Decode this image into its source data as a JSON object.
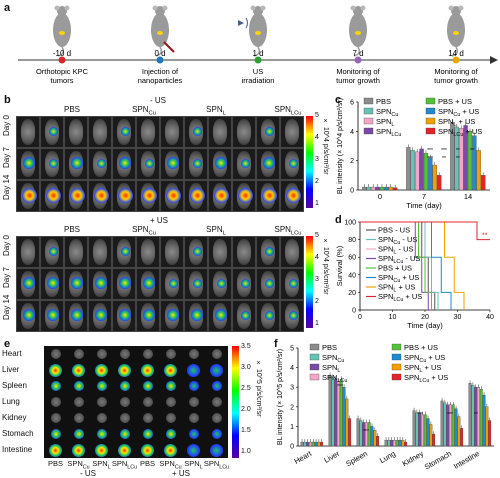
{
  "panels": {
    "a": "a",
    "b": "b",
    "c": "c",
    "d": "d",
    "e": "e",
    "f": "f"
  },
  "timeline": {
    "events": [
      {
        "day": "-10 d",
        "label": "Orthotopic KPC\ntumors"
      },
      {
        "day": "0 d",
        "label": "Injection of\nnanoparticles"
      },
      {
        "day": "1 d",
        "label": "US\nirradiation"
      },
      {
        "day": "7 d",
        "label": "Monitoring of\ntumor growth"
      },
      {
        "day": "14 d",
        "label": "Monitoring of\ntumor growth"
      }
    ],
    "dot_colors": [
      "#d62728",
      "#1f77b4",
      "#2ca02c",
      "#9467bd",
      "#e6a700"
    ]
  },
  "panel_b": {
    "minus_title": "- US",
    "plus_title": "+ US",
    "groups": [
      "PBS",
      "SPN_Cu",
      "SPN_L",
      "SPN_LCu"
    ],
    "rows": [
      "Day 0",
      "Day 7",
      "Day 14"
    ],
    "colorbar_label": "× 10^4 p/s/cm²/sr",
    "colorbar_ticks": [
      "5",
      "4",
      "3",
      "2",
      "1"
    ]
  },
  "panel_e": {
    "organs": [
      "Heart",
      "Liver",
      "Spleen",
      "Lung",
      "Kidney",
      "Stomach",
      "Intestine"
    ],
    "groups": [
      "PBS",
      "SPN_Cu",
      "SPN_L",
      "SPN_LCu",
      "PBS",
      "SPN_Cu",
      "SPN_L",
      "SPN_LCu"
    ],
    "minus_label": "- US",
    "plus_label": "+ US",
    "colorbar_label": "× 10^5 p/s/cm²/sr",
    "colorbar_ticks": [
      "3.5",
      "3.0",
      "2.5",
      "2.0",
      "1.5",
      "1.0"
    ]
  },
  "chart_data": [
    {
      "id": "c",
      "type": "bar",
      "categories": [
        "0",
        "7",
        "14"
      ],
      "xlabel": "Time (day)",
      "ylabel": "BL intensity (× 10^4 p/s/cm²/sr)",
      "ylim": [
        0,
        6
      ],
      "yticks": [
        0,
        2,
        4,
        6
      ],
      "series": [
        {
          "name": "PBS",
          "color": "#8c8c8c",
          "values": [
            0.2,
            2.9,
            4.6
          ]
        },
        {
          "name": "SPN_Cu",
          "color": "#66c2b5",
          "values": [
            0.2,
            2.7,
            4.3
          ]
        },
        {
          "name": "SPN_L",
          "color": "#f4a6c6",
          "values": [
            0.2,
            2.6,
            4.2
          ]
        },
        {
          "name": "SPN_LCu",
          "color": "#7b4aa8",
          "values": [
            0.2,
            2.8,
            4.4
          ]
        },
        {
          "name": "PBS + US",
          "color": "#55c23a",
          "values": [
            0.2,
            2.5,
            4.0
          ]
        },
        {
          "name": "SPN_Cu + US",
          "color": "#1f8ad0",
          "values": [
            0.2,
            2.2,
            3.7
          ]
        },
        {
          "name": "SPN_L + US",
          "color": "#f2a000",
          "values": [
            0.2,
            1.7,
            2.7
          ]
        },
        {
          "name": "SPN_LCu + US",
          "color": "#e0262b",
          "values": [
            0.15,
            1.0,
            1.0
          ]
        }
      ],
      "annotations": [
        "***",
        "***",
        "**",
        "**",
        "***",
        "**",
        "**"
      ]
    },
    {
      "id": "d",
      "type": "line",
      "xlabel": "Time (day)",
      "ylabel": "Survival (%)",
      "xlim": [
        0,
        40
      ],
      "ylim": [
        0,
        100
      ],
      "xticks": [
        0,
        10,
        20,
        30,
        40
      ],
      "yticks": [
        0,
        20,
        40,
        60,
        80,
        100
      ],
      "series": [
        {
          "name": "PBS - US",
          "color": "#555555",
          "x": [
            0,
            19,
            19,
            21,
            21,
            23,
            23
          ],
          "y": [
            100,
            100,
            60,
            60,
            20,
            20,
            0
          ]
        },
        {
          "name": "SPN_Cu - US",
          "color": "#66c2b5",
          "x": [
            0,
            20,
            20,
            22,
            22,
            24,
            24
          ],
          "y": [
            100,
            100,
            60,
            60,
            20,
            20,
            0
          ]
        },
        {
          "name": "SPN_L - US",
          "color": "#f4a6c6",
          "x": [
            0,
            18,
            18,
            20,
            20,
            22,
            22
          ],
          "y": [
            100,
            100,
            60,
            60,
            20,
            20,
            0
          ]
        },
        {
          "name": "SPN_LCu - US",
          "color": "#7b4aa8",
          "x": [
            0,
            17,
            17,
            19,
            19,
            21,
            21
          ],
          "y": [
            100,
            100,
            60,
            60,
            20,
            20,
            0
          ]
        },
        {
          "name": "PBS + US",
          "color": "#55c23a",
          "x": [
            0,
            18,
            18,
            20,
            20,
            22,
            22
          ],
          "y": [
            100,
            100,
            60,
            60,
            20,
            20,
            0
          ]
        },
        {
          "name": "SPN_Cu + US",
          "color": "#1f8ad0",
          "x": [
            0,
            22,
            22,
            25,
            25,
            28,
            28
          ],
          "y": [
            100,
            100,
            60,
            60,
            20,
            20,
            0
          ]
        },
        {
          "name": "SPN_L + US",
          "color": "#f2a000",
          "x": [
            0,
            26,
            26,
            29,
            29,
            32,
            32
          ],
          "y": [
            100,
            100,
            60,
            60,
            20,
            20,
            0
          ]
        },
        {
          "name": "SPN_LCu + US",
          "color": "#e0262b",
          "x": [
            0,
            36,
            36,
            40
          ],
          "y": [
            100,
            100,
            80,
            80
          ]
        }
      ],
      "annotation": "**"
    },
    {
      "id": "f",
      "type": "bar",
      "categories": [
        "Heart",
        "Liver",
        "Spleen",
        "Lung",
        "Kidney",
        "Stomach",
        "Intestine"
      ],
      "ylabel": "BL intensity (× 10^5 p/s/cm²/sr)",
      "ylim": [
        0,
        5
      ],
      "yticks": [
        0,
        1,
        2,
        3,
        4,
        5
      ],
      "series": [
        {
          "name": "PBS",
          "color": "#8c8c8c",
          "values": [
            0.2,
            3.6,
            1.4,
            0.3,
            1.8,
            2.3,
            3.2
          ]
        },
        {
          "name": "SPN_Cu",
          "color": "#66c2b5",
          "values": [
            0.2,
            3.5,
            1.3,
            0.3,
            1.7,
            2.2,
            3.1
          ]
        },
        {
          "name": "SPN_L",
          "color": "#7b4aa8",
          "values": [
            0.2,
            3.4,
            1.2,
            0.3,
            1.7,
            2.1,
            3.0
          ]
        },
        {
          "name": "SPN_LCu",
          "color": "#f4a6c6",
          "values": [
            0.2,
            3.3,
            1.2,
            0.3,
            1.6,
            2.1,
            3.0
          ]
        },
        {
          "name": "PBS + US",
          "color": "#55c23a",
          "values": [
            0.2,
            3.4,
            1.2,
            0.3,
            1.6,
            2.1,
            2.9
          ]
        },
        {
          "name": "SPN_Cu + US",
          "color": "#1f8ad0",
          "values": [
            0.2,
            3.0,
            1.0,
            0.3,
            1.4,
            1.9,
            2.6
          ]
        },
        {
          "name": "SPN_L + US",
          "color": "#f2a000",
          "values": [
            0.2,
            2.4,
            0.8,
            0.3,
            1.1,
            1.5,
            2.0
          ]
        },
        {
          "name": "SPN_LCu + US",
          "color": "#e0262b",
          "values": [
            0.2,
            1.4,
            0.5,
            0.2,
            0.6,
            0.9,
            1.3
          ]
        }
      ],
      "annotations": [
        "***",
        "***",
        "***",
        "***",
        "**"
      ]
    }
  ]
}
